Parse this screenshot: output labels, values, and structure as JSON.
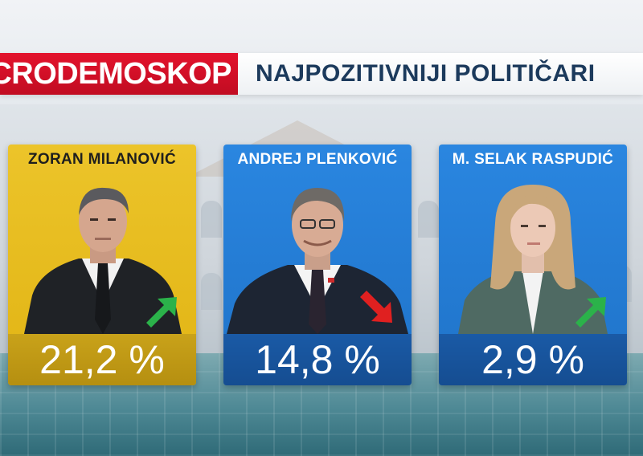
{
  "header": {
    "brand": "CRODEMOSKOP",
    "title": "NAJPOZITIVNIJI POLITIČARI"
  },
  "colors": {
    "brand_red": "#d8102a",
    "yellow_card": "#e6bb1f",
    "blue_card": "#2579d4",
    "arrow_up": "#2bb24a",
    "arrow_down": "#e02020"
  },
  "politicians": [
    {
      "name": "ZORAN MILANOVIĆ",
      "value": "21,2 %",
      "trend": "up",
      "trend_icon": "arrow-up-right-icon"
    },
    {
      "name": "ANDREJ PLENKOVIĆ",
      "value": "14,8 %",
      "trend": "down",
      "trend_icon": "arrow-down-right-icon"
    },
    {
      "name": "M. SELAK RASPUDIĆ",
      "value": "2,9 %",
      "trend": "up",
      "trend_icon": "arrow-up-right-icon"
    }
  ]
}
